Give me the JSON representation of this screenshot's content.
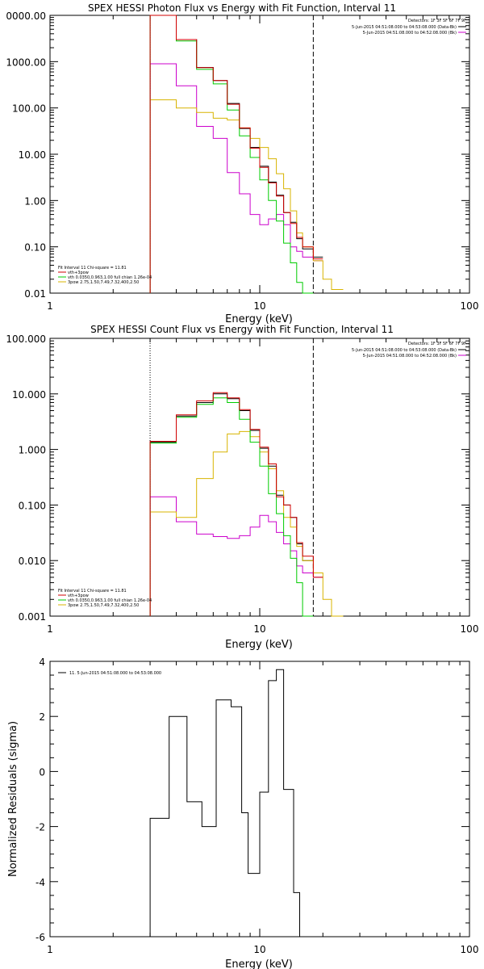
{
  "colors": {
    "black": "#000000",
    "red": "#d00000",
    "green": "#00cc00",
    "magenta": "#cc00cc",
    "yellow": "#d8b400"
  },
  "chart_data": [
    {
      "type": "line",
      "scale": "loglog",
      "title": "SPEX HESSI Photon Flux vs Energy with Fit Function, Interval 11",
      "xlabel": "Energy (keV)",
      "ylabel": "",
      "xlim": [
        1,
        100
      ],
      "ylim": [
        0.01,
        10000
      ],
      "x_ticks": [
        "1",
        "10",
        "100"
      ],
      "y_ticks": [
        "0000.00",
        "1000.00",
        "100.00",
        "10.00",
        "1.00",
        "0.10",
        "0.01"
      ],
      "detectors": "Detectors: 1F 3F 5F 6F 7F 9F",
      "time_lines": [
        "5-Jun-2015 04:51:08.000 to 04:53:08.000 (Data-Bk)",
        "5-Jun-2015 04:51:08.000 to 04:52:08.000 (Bk)"
      ],
      "legend": [
        "Fit Interval 11    Chi-square = 11.81",
        "vth+3pow",
        "vth 0.0350,0.963,1.00  full chian 1.26e-04",
        "3pow 2.75,1.50,7.49,7.32,400,2.50"
      ],
      "fit_bounds": [
        3.0,
        18.0
      ],
      "edges": [
        3.0,
        4.0,
        5.0,
        6.0,
        7.0,
        8.0,
        9.0,
        10.0,
        11.0,
        12.0,
        13.0,
        14.0,
        15.0,
        16.0,
        18.0,
        20.0,
        22.0,
        25.0
      ],
      "series": [
        {
          "name": "",
          "color": "black",
          "values": [
            10000,
            3000,
            750,
            390,
            125,
            36,
            14,
            5.5,
            2.5,
            1.3,
            0.55,
            0.34,
            0.15,
            0.09,
            0.06,
            null,
            null
          ]
        },
        {
          "name": "vth+3pow",
          "color": "red",
          "values": [
            10000,
            3000,
            740,
            390,
            120,
            37,
            13.5,
            5.2,
            2.4,
            1.25,
            0.55,
            0.32,
            0.16,
            0.1,
            0.055,
            null,
            null
          ]
        },
        {
          "name": "vth",
          "color": "green",
          "values": [
            10000,
            2800,
            680,
            330,
            90,
            25,
            8.5,
            2.8,
            1.0,
            0.36,
            0.12,
            0.045,
            0.017,
            0.005,
            null,
            null,
            null
          ]
        },
        {
          "name": "3pow",
          "color": "yellow",
          "values": [
            150,
            100,
            80,
            60,
            55,
            37,
            22,
            14,
            8,
            3.8,
            1.8,
            0.6,
            0.2,
            0.1,
            0.05,
            0.02,
            0.012
          ]
        },
        {
          "name": "",
          "color": "magenta",
          "values": [
            900,
            300,
            40,
            22,
            4.0,
            1.4,
            0.5,
            0.3,
            0.4,
            0.5,
            0.3,
            0.1,
            0.08,
            0.06,
            0.05,
            null,
            null
          ]
        }
      ]
    },
    {
      "type": "line",
      "scale": "loglog",
      "title": "SPEX HESSI Count Flux vs Energy with Fit Function, Interval 11",
      "xlabel": "Energy (keV)",
      "ylabel": "",
      "xlim": [
        1,
        100
      ],
      "ylim": [
        0.001,
        100
      ],
      "x_ticks": [
        "1",
        "10",
        "100"
      ],
      "y_ticks": [
        "100.000",
        "10.000",
        "1.000",
        "0.100",
        "0.010",
        "0.001"
      ],
      "detectors": "Detectors: 1F 3F 5F 6F 7F 9F",
      "time_lines": [
        "5-Jun-2015 04:51:08.000 to 04:53:08.000 (Data-Bk)",
        "5-Jun-2015 04:51:08.000 to 04:52:08.000 (Bk)"
      ],
      "legend": [
        "Fit Interval 11    Chi-square = 11.81",
        "vth+3pow",
        "vth 0.0350,0.963,1.00  full chian 1.26e-04",
        "3pow 2.75,1.50,7.49,7.32,400,2.50"
      ],
      "fit_bounds": [
        3.0,
        18.0
      ],
      "edges": [
        3.0,
        4.0,
        5.0,
        6.0,
        7.0,
        8.0,
        9.0,
        10.0,
        11.0,
        12.0,
        13.0,
        14.0,
        15.0,
        16.0,
        18.0,
        20.0,
        22.0,
        25.0
      ],
      "series": [
        {
          "name": "",
          "color": "black",
          "values": [
            1.35,
            4.0,
            7.0,
            10.0,
            8.2,
            5.0,
            2.2,
            1.05,
            0.5,
            0.15,
            0.1,
            0.06,
            0.02,
            0.01,
            null,
            null,
            null
          ]
        },
        {
          "name": "vth+3pow",
          "color": "red",
          "values": [
            1.4,
            4.2,
            7.5,
            10.5,
            8.5,
            5.2,
            2.3,
            1.1,
            0.55,
            0.14,
            0.1,
            0.06,
            0.021,
            0.012,
            0.005,
            null,
            null
          ]
        },
        {
          "name": "vth",
          "color": "green",
          "values": [
            1.3,
            3.8,
            6.5,
            8.5,
            7.0,
            3.5,
            1.35,
            0.5,
            0.16,
            0.07,
            0.028,
            0.011,
            0.004,
            0.001,
            null,
            null,
            null
          ]
        },
        {
          "name": "3pow",
          "color": "yellow",
          "values": [
            0.075,
            0.06,
            0.3,
            0.9,
            1.9,
            2.1,
            1.7,
            0.9,
            0.45,
            0.18,
            0.06,
            0.04,
            0.018,
            0.01,
            0.006,
            0.002,
            0.001
          ]
        },
        {
          "name": "",
          "color": "magenta",
          "values": [
            0.14,
            0.05,
            0.03,
            0.027,
            0.025,
            0.028,
            0.04,
            0.065,
            0.05,
            0.032,
            0.02,
            0.015,
            0.008,
            0.006,
            0.005,
            null,
            null
          ]
        }
      ]
    },
    {
      "type": "line",
      "scale": "semilogx",
      "title": "",
      "xlabel": "Energy (keV)",
      "ylabel": "Normalized Residuals (sigma)",
      "xlim": [
        1,
        100
      ],
      "ylim": [
        -6,
        4
      ],
      "x_ticks": [
        "1",
        "10",
        "100"
      ],
      "y_ticks": [
        "4",
        "2",
        "0",
        "-2",
        "-4",
        "-6"
      ],
      "legend": [
        "11.  5-Jun-2015 04:51:08.000 to 04:53:08.000"
      ],
      "edges": [
        3.0,
        3.7,
        4.5,
        5.3,
        6.2,
        7.3,
        8.2,
        8.8,
        10.0,
        11.0,
        12.0,
        13.0,
        14.5,
        15.5,
        18.0
      ],
      "values": [
        -1.7,
        2.0,
        -1.1,
        -2.0,
        2.6,
        2.35,
        -1.5,
        -3.7,
        -0.75,
        3.3,
        3.7,
        -0.65,
        -4.4,
        -6.0
      ]
    }
  ]
}
